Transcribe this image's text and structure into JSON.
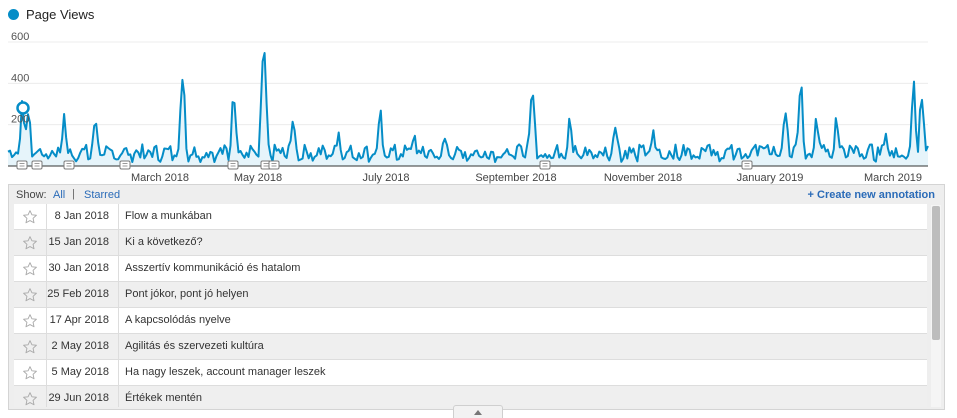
{
  "legend": {
    "label": "Page Views",
    "color": "#058dc7",
    "icon": "filled-circle"
  },
  "chart_data": {
    "type": "area",
    "series": [
      {
        "name": "Page Views",
        "values": []
      }
    ],
    "ylim": [
      0,
      600
    ],
    "yticks": [
      "200",
      "400",
      "600"
    ],
    "xticks": [
      "March 2018",
      "May 2018",
      "July 2018",
      "September 2018",
      "November 2018",
      "January 2019",
      "March 2019"
    ],
    "peaks": [
      {
        "x": "Jan 2018",
        "y": 300
      },
      {
        "x": "mid-Mar 2018",
        "y": 420
      },
      {
        "x": "late Apr 2018",
        "y": 330
      },
      {
        "x": "early May 2018",
        "y": 560
      },
      {
        "x": "early Jul 2018",
        "y": 250
      },
      {
        "x": "late Aug 2018",
        "y": 350
      },
      {
        "x": "late Jan 2019",
        "y": 390
      },
      {
        "x": "late Mar 2019",
        "y": 400
      }
    ],
    "line_color": "#058dc7",
    "fill_color": "#e6f4fa",
    "grid": true
  },
  "annotations": {
    "show_label": "Show:",
    "filter_all": "All",
    "filter_sep": "|",
    "filter_starred": "Starred",
    "create_label": "+ Create new annotation",
    "rows": [
      {
        "date": "8 Jan 2018",
        "title": "Flow a munkában"
      },
      {
        "date": "15 Jan 2018",
        "title": "Ki a következő?"
      },
      {
        "date": "30 Jan 2018",
        "title": "Asszertív kommunikáció és hatalom"
      },
      {
        "date": "25 Feb 2018",
        "title": "Pont jókor, pont jó helyen"
      },
      {
        "date": "17 Apr 2018",
        "title": "A kapcsolódás nyelve"
      },
      {
        "date": "2 May 2018",
        "title": "Agilitás és szervezeti kultúra"
      },
      {
        "date": "5 May 2018",
        "title": "Ha nagy leszek, account manager leszek"
      },
      {
        "date": "29 Jun 2018",
        "title": "Értékek mentén"
      }
    ]
  }
}
